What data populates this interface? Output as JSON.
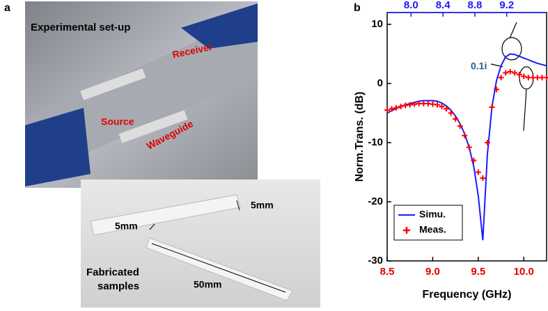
{
  "panel_a": {
    "label": "a",
    "photo_title": "Experimental set-up",
    "receiver": "Receiver",
    "source": "Source",
    "waveguide": "Waveguide",
    "dim_height": "5mm",
    "dim_width": "5mm",
    "samples_line1": "Fabricated",
    "samples_line2": "samples",
    "dim_length": "50mm"
  },
  "chart_data": {
    "type": "line",
    "panel_label": "b",
    "annotation": "0.1i",
    "x_label": "Frequency (GHz)",
    "y_label": "Norm.Trans. (dB)",
    "x": [
      8.5,
      8.55,
      8.6,
      8.65,
      8.7,
      8.75,
      8.8,
      8.85,
      8.9,
      8.95,
      9.0,
      9.05,
      9.1,
      9.15,
      9.2,
      9.25,
      9.3,
      9.35,
      9.4,
      9.45,
      9.5,
      9.55,
      9.6,
      9.65,
      9.7,
      9.75,
      9.8,
      9.85,
      9.9,
      9.95,
      10.0,
      10.05,
      10.1,
      10.15,
      10.2,
      10.25
    ],
    "series": [
      {
        "name": "Simu.",
        "color": "#1a1aff",
        "style": "line",
        "values": [
          -5,
          -4.6,
          -4.2,
          -3.9,
          -3.6,
          -3.4,
          -3.2,
          -3.0,
          -2.9,
          -2.9,
          -2.9,
          -3.0,
          -3.3,
          -3.8,
          -4.5,
          -5.5,
          -6.8,
          -8.5,
          -10.8,
          -14,
          -19,
          -26.5,
          -12,
          -4,
          0.5,
          3,
          4.5,
          5,
          4.9,
          4.6,
          4.3,
          4,
          3.7,
          3.4,
          3.2,
          3
        ]
      },
      {
        "name": "Meas.",
        "color": "#ff0000",
        "style": "cross",
        "values": [
          -4.5,
          -4.3,
          -4.1,
          -3.9,
          -3.7,
          -3.6,
          -3.5,
          -3.4,
          -3.4,
          -3.4,
          -3.5,
          -3.6,
          -3.9,
          -4.3,
          -5,
          -6,
          -7.2,
          -8.8,
          -10.8,
          -13,
          -15,
          -16,
          -10,
          -4,
          -1,
          1,
          1.8,
          2,
          1.8,
          1.5,
          1.2,
          1,
          1,
          1,
          1,
          1
        ]
      }
    ],
    "xlim": [
      8.5,
      10.25
    ],
    "xticks": [
      8.5,
      {
        "value": 9,
        "label": "9.0"
      },
      9.5,
      {
        "value": 10,
        "label": "10.0"
      }
    ],
    "x2lim": [
      7.7,
      9.7
    ],
    "x2ticks": [
      {
        "value": 8,
        "label": "8.0"
      },
      8.4,
      8.8,
      9.2
    ],
    "ylim": [
      -30,
      12
    ],
    "yticks": [
      -30,
      -20,
      -10,
      0,
      10
    ],
    "x_tick_color": "#e00000",
    "x2_tick_color": "#1a1aff",
    "legend": "lower left"
  }
}
